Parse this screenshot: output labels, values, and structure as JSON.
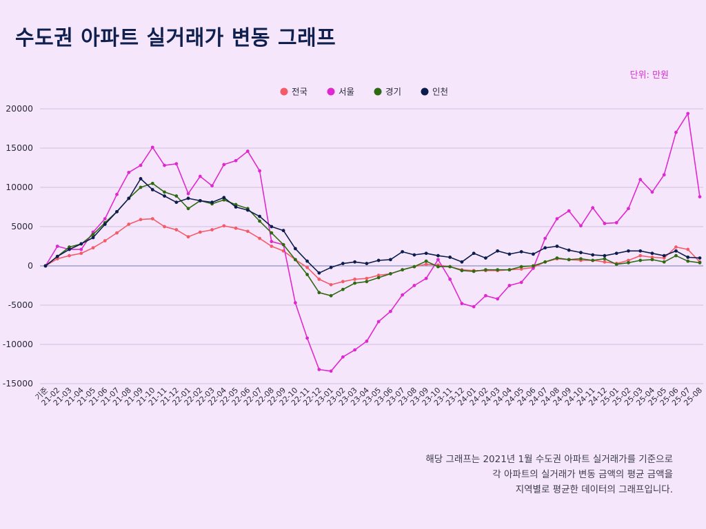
{
  "title": "수도권 아파트 실거래가 변동 그래프",
  "unit_label": "단위: 만원",
  "footnote": [
    "해당 그래프는 2021년 1월 수도권 아파트 실거래가를 기준으로",
    "각 아파트의 실거래가 변동 금액의 평균 금액을",
    "지역별로 평균한 데이터의 그래프입니다."
  ],
  "chart_data": {
    "type": "line",
    "title": "수도권 아파트 실거래가 변동 그래프",
    "xlabel": "",
    "ylabel": "",
    "ylim": [
      -15000,
      20000
    ],
    "yticks": [
      20000,
      15000,
      10000,
      5000,
      0,
      -5000,
      -10000,
      -15000
    ],
    "grid": true,
    "legend_position": "top-center",
    "x": [
      "기준",
      "21-02",
      "21-03",
      "21-04",
      "21-05",
      "21-06",
      "21-07",
      "21-08",
      "21-09",
      "21-10",
      "21-11",
      "21-12",
      "22-01",
      "22-02",
      "22-03",
      "22-04",
      "22-05",
      "22-06",
      "22-07",
      "22-08",
      "22-09",
      "22-10",
      "22-11",
      "22-12",
      "23-01",
      "23-02",
      "23-03",
      "23-04",
      "23-05",
      "23-06",
      "23-07",
      "23-08",
      "23-09",
      "23-10",
      "23-11",
      "23-12",
      "24-01",
      "24-02",
      "24-03",
      "24-04",
      "24-05",
      "24-06",
      "24-07",
      "24-08",
      "24-09",
      "24-10",
      "24-11",
      "24-12",
      "25-01",
      "25-02",
      "25-03",
      "25-04",
      "25-05",
      "25-06",
      "25-07",
      "25-08"
    ],
    "series": [
      {
        "name": "전국",
        "color": "#f45b69",
        "values": [
          0,
          900,
          1300,
          1600,
          2300,
          3200,
          4200,
          5300,
          5900,
          6000,
          5000,
          4600,
          3700,
          4300,
          4600,
          5100,
          4800,
          4400,
          3500,
          2500,
          1900,
          800,
          -200,
          -1700,
          -2400,
          -2000,
          -1700,
          -1600,
          -1200,
          -1000,
          -500,
          -100,
          200,
          100,
          -100,
          -500,
          -600,
          -600,
          -600,
          -500,
          -400,
          -200,
          500,
          900,
          800,
          700,
          700,
          500,
          300,
          700,
          1300,
          1100,
          1000,
          2400,
          2100,
          500
        ]
      },
      {
        "name": "서울",
        "color": "#df28cf",
        "values": [
          0,
          2500,
          2100,
          2100,
          4300,
          6000,
          9100,
          11900,
          12800,
          15100,
          12800,
          13000,
          9200,
          11400,
          10200,
          12900,
          13400,
          14600,
          12100,
          3100,
          2700,
          -4700,
          -9200,
          -13200,
          -13400,
          -11600,
          -10700,
          -9600,
          -7100,
          -5800,
          -3700,
          -2500,
          -1600,
          800,
          -1700,
          -4800,
          -5200,
          -3800,
          -4200,
          -2500,
          -2100,
          -300,
          3500,
          6000,
          7000,
          5100,
          7400,
          5400,
          5500,
          7300,
          11000,
          9400,
          11600,
          17000,
          19400,
          8800
        ]
      },
      {
        "name": "경기",
        "color": "#2d6a12",
        "values": [
          0,
          1200,
          2400,
          2800,
          4000,
          5500,
          6900,
          8600,
          10000,
          10500,
          9400,
          8900,
          7300,
          8300,
          7900,
          8400,
          7800,
          7300,
          5700,
          4200,
          2700,
          800,
          -1100,
          -3400,
          -3800,
          -3000,
          -2200,
          -2000,
          -1500,
          -1000,
          -500,
          -100,
          600,
          -100,
          -100,
          -600,
          -700,
          -500,
          -500,
          -500,
          -100,
          0,
          500,
          1000,
          800,
          900,
          700,
          900,
          200,
          400,
          700,
          800,
          500,
          1300,
          600,
          400
        ]
      },
      {
        "name": "인천",
        "color": "#0c1c4c",
        "values": [
          0,
          1200,
          2100,
          2800,
          3600,
          5300,
          6900,
          8600,
          11100,
          9700,
          8900,
          8100,
          8600,
          8300,
          8100,
          8700,
          7500,
          7100,
          6300,
          5000,
          4500,
          2200,
          600,
          -900,
          -200,
          300,
          500,
          300,
          700,
          800,
          1800,
          1400,
          1600,
          1300,
          1100,
          500,
          1600,
          1000,
          1900,
          1500,
          1800,
          1500,
          2300,
          2500,
          2000,
          1700,
          1400,
          1300,
          1600,
          1900,
          1900,
          1600,
          1300,
          1900,
          1100,
          1000
        ]
      }
    ]
  }
}
